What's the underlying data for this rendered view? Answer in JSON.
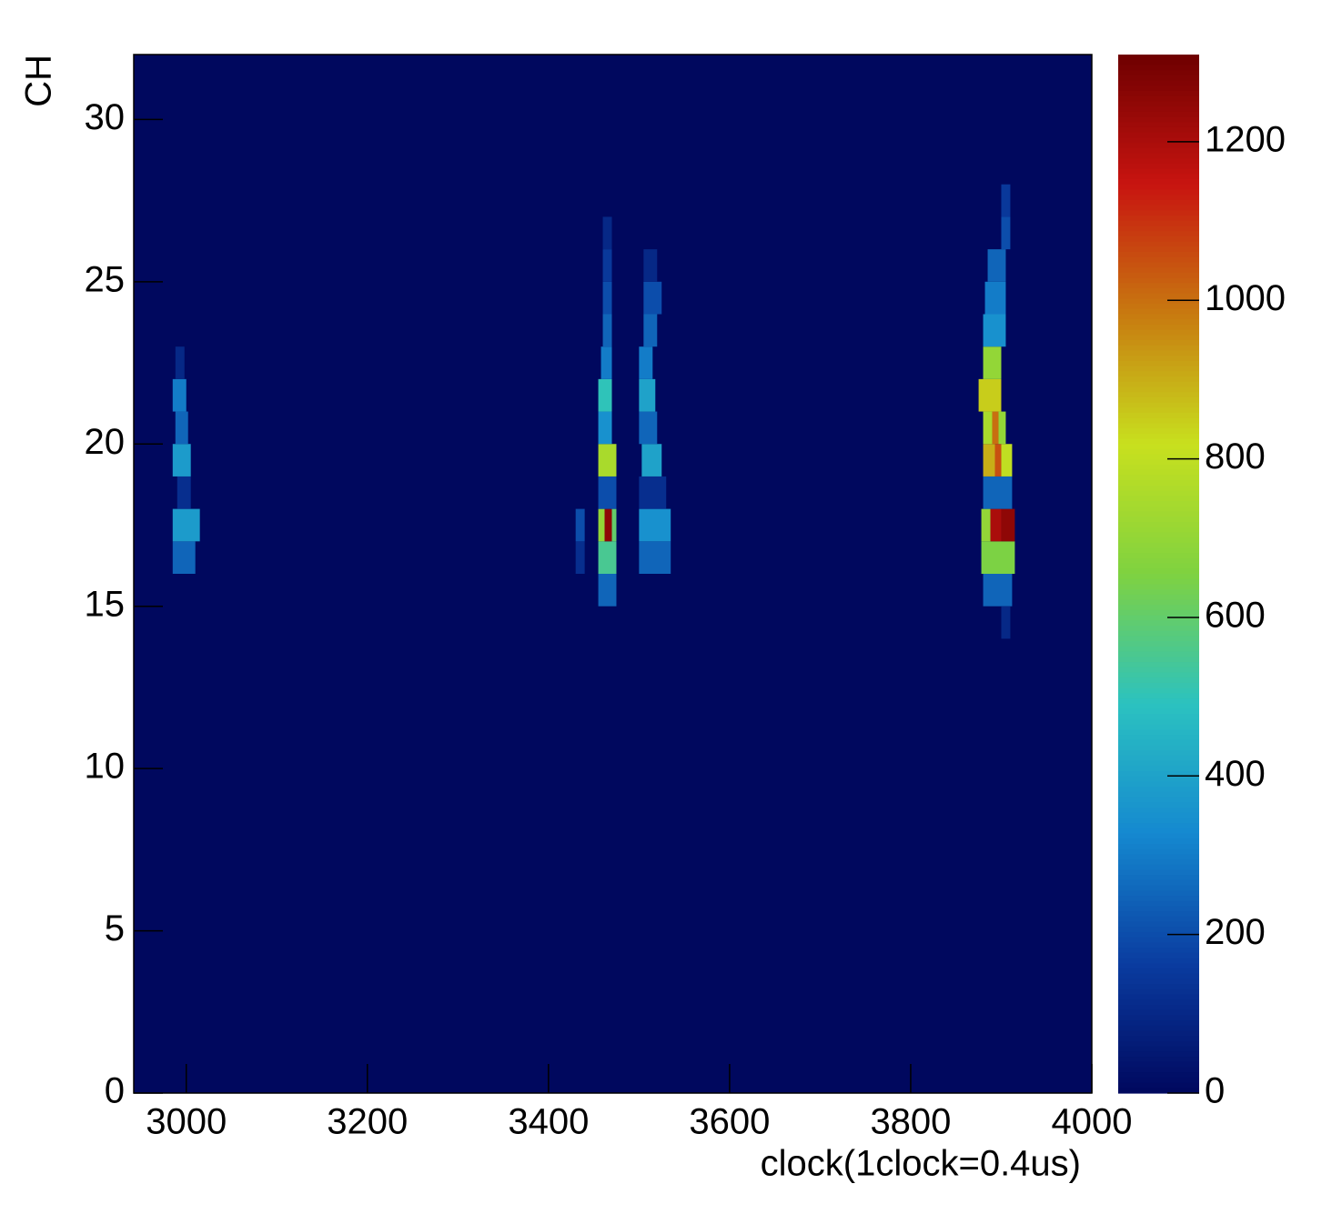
{
  "chart_data": {
    "type": "heatmap",
    "xlabel": "clock(1clock=0.4us)",
    "ylabel": "CH",
    "xlim": [
      2942,
      4000
    ],
    "ylim": [
      0,
      32
    ],
    "xticks": [
      3000,
      3200,
      3400,
      3600,
      3800,
      4000
    ],
    "yticks": [
      0,
      5,
      10,
      15,
      20,
      25,
      30
    ],
    "zlim": [
      0,
      1310
    ],
    "zticks": [
      0,
      200,
      400,
      600,
      800,
      1000,
      1200
    ],
    "colors": [
      "#00085e",
      "#0a3ca0",
      "#1589d0",
      "#2bc2c0",
      "#7fd240",
      "#c8e01e",
      "#c87a10",
      "#c81410",
      "#6e0000"
    ],
    "x0": [
      2985,
      2985,
      2990,
      2985,
      2988,
      2985,
      2988,
      3455,
      3455,
      3455,
      3462,
      3470,
      3430,
      3430,
      3455,
      3455,
      3455,
      3455,
      3458,
      3460,
      3460,
      3460,
      3460,
      3500,
      3500,
      3500,
      3503,
      3500,
      3500,
      3500,
      3505,
      3505,
      3505,
      3880,
      3878,
      3878,
      3888,
      3900,
      3880,
      3880,
      3893,
      3900,
      3880,
      3890,
      3897,
      3875,
      3880,
      3880,
      3882,
      3885,
      3900,
      3900,
      3900
    ],
    "x1": [
      3010,
      3015,
      3005,
      3005,
      3002,
      3000,
      2998,
      3475,
      3475,
      3462,
      3470,
      3475,
      3440,
      3440,
      3475,
      3475,
      3470,
      3470,
      3470,
      3470,
      3470,
      3470,
      3470,
      3535,
      3535,
      3530,
      3525,
      3520,
      3518,
      3515,
      3520,
      3525,
      3520,
      3912,
      3915,
      3888,
      3900,
      3915,
      3912,
      3893,
      3900,
      3912,
      3890,
      3897,
      3905,
      3900,
      3900,
      3905,
      3905,
      3905,
      3910,
      3910,
      3910
    ],
    "y": [
      16,
      17,
      18,
      19,
      20,
      21,
      22,
      15,
      16,
      17,
      17,
      17,
      16,
      17,
      18,
      19,
      20,
      21,
      22,
      23,
      24,
      25,
      26,
      16,
      17,
      18,
      19,
      20,
      21,
      22,
      23,
      24,
      25,
      15,
      16,
      17,
      17,
      17,
      18,
      19,
      19,
      19,
      20,
      20,
      20,
      21,
      22,
      23,
      24,
      25,
      26,
      27,
      14
    ],
    "values": [
      250,
      380,
      120,
      380,
      250,
      300,
      100,
      250,
      550,
      700,
      1250,
      600,
      120,
      200,
      200,
      750,
      350,
      500,
      300,
      250,
      200,
      150,
      100,
      250,
      350,
      120,
      400,
      250,
      400,
      300,
      250,
      200,
      100,
      250,
      650,
      700,
      1200,
      1250,
      250,
      900,
      1050,
      800,
      750,
      1000,
      700,
      850,
      700,
      350,
      300,
      250,
      200,
      150,
      100
    ]
  }
}
